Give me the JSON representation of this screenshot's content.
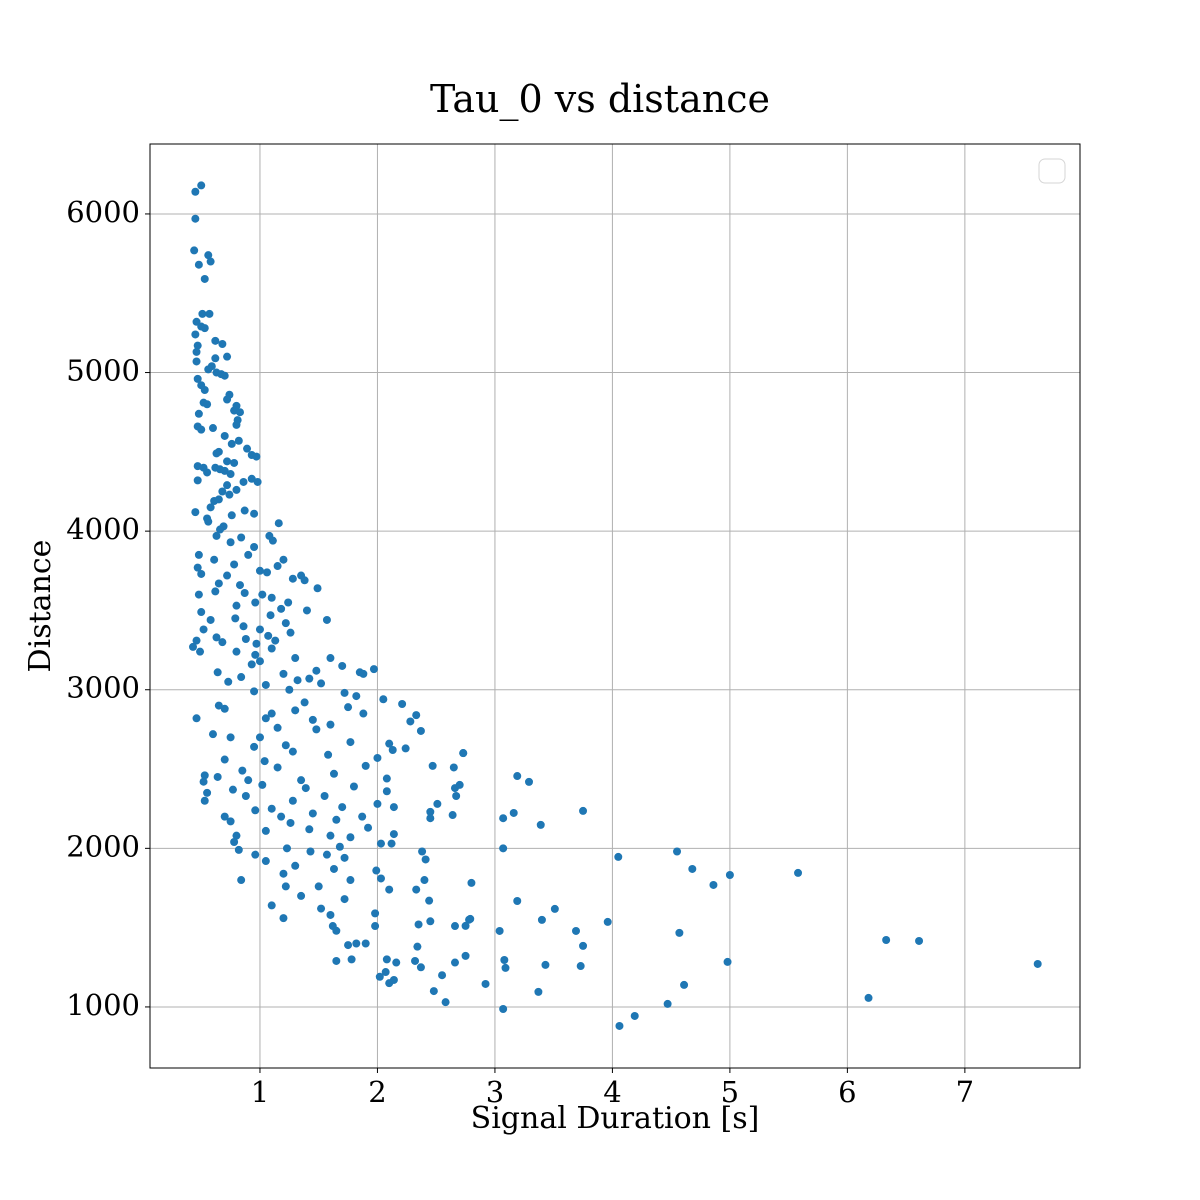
{
  "chart_data": {
    "type": "scatter",
    "title": "Tau_0 vs distance",
    "x_label": "Signal Duration [s]",
    "y_label": "Distance",
    "color": "#1f77b4",
    "grid": true,
    "legend": "upper right",
    "xlim": [
      0.064,
      7.98
    ],
    "ylim": [
      615,
      6441
    ],
    "xticks": [
      1,
      2,
      3,
      4,
      5,
      6,
      7
    ],
    "yticks": [
      1000,
      2000,
      3000,
      4000,
      5000,
      6000
    ],
    "x": [
      0.45,
      0.5,
      0.45,
      0.44,
      0.56,
      0.58,
      0.48,
      0.53,
      0.51,
      0.57,
      0.46,
      0.5,
      0.53,
      0.45,
      0.62,
      0.47,
      0.46,
      0.68,
      0.62,
      0.72,
      0.46,
      0.59,
      0.56,
      0.63,
      0.67,
      0.7,
      0.47,
      0.5,
      0.53,
      0.74,
      0.72,
      0.52,
      0.55,
      0.8,
      0.78,
      0.83,
      0.48,
      0.81,
      0.8,
      0.6,
      0.47,
      0.5,
      0.7,
      0.82,
      0.76,
      0.89,
      0.93,
      0.97,
      0.65,
      0.63,
      0.72,
      0.78,
      0.47,
      0.52,
      0.62,
      0.66,
      0.7,
      0.75,
      0.55,
      0.47,
      0.93,
      0.98,
      0.86,
      0.72,
      0.8,
      0.68,
      0.74,
      0.65,
      0.61,
      0.58,
      0.45,
      0.87,
      0.95,
      0.76,
      0.55,
      0.56,
      0.69,
      1.16,
      0.66,
      0.63,
      0.84,
      1.08,
      1.11,
      0.75,
      0.95,
      0.48,
      0.9,
      1.2,
      0.61,
      0.78,
      1.15,
      0.47,
      1.0,
      0.5,
      1.06,
      0.72,
      1.35,
      1.28,
      1.38,
      0.65,
      0.83,
      1.49,
      0.62,
      0.87,
      1.02,
      0.48,
      1.1,
      0.96,
      1.24,
      0.8,
      1.18,
      1.4,
      0.5,
      1.09,
      0.58,
      0.79,
      1.57,
      1.22,
      0.86,
      1.0,
      0.52,
      1.26,
      1.07,
      0.63,
      0.88,
      1.13,
      0.97,
      0.46,
      0.68,
      0.43,
      1.1,
      0.8,
      0.49,
      0.96,
      1.3,
      1.6,
      1.0,
      1.7,
      0.93,
      1.97,
      1.48,
      0.64,
      1.85,
      1.2,
      1.88,
      0.84,
      1.42,
      0.73,
      1.32,
      1.52,
      1.05,
      1.25,
      0.95,
      1.72,
      1.82,
      1.38,
      2.05,
      2.21,
      0.65,
      1.75,
      1.3,
      0.7,
      1.1,
      2.33,
      1.88,
      0.46,
      1.05,
      1.45,
      1.6,
      2.28,
      1.15,
      2.37,
      1.48,
      0.6,
      0.75,
      1.0,
      1.77,
      2.1,
      1.22,
      0.95,
      2.24,
      2.13,
      1.28,
      0.7,
      1.04,
      1.58,
      2.0,
      2.73,
      1.9,
      2.47,
      1.15,
      2.65,
      0.85,
      0.53,
      1.63,
      0.64,
      2.08,
      1.35,
      0.52,
      0.9,
      1.02,
      1.8,
      2.66,
      1.39,
      0.77,
      2.08,
      0.55,
      1.55,
      2.67,
      0.88,
      0.53,
      1.28,
      2.0,
      2.51,
      1.7,
      2.14,
      1.1,
      0.96,
      2.45,
      1.45,
      0.7,
      1.18,
      1.87,
      2.64,
      2.45,
      1.65,
      0.75,
      1.26,
      1.92,
      1.42,
      1.05,
      0.8,
      1.6,
      2.14,
      1.77,
      0.78,
      2.03,
      2.12,
      1.23,
      1.68,
      0.82,
      1.43,
      0.96,
      1.57,
      2.38,
      1.72,
      1.05,
      2.41,
      1.3,
      1.99,
      1.63,
      2.03,
      1.2,
      0.84,
      1.77,
      2.4,
      2.33,
      2.1,
      1.22,
      1.5,
      1.35,
      1.72,
      1.1,
      2.44,
      1.52,
      1.6,
      1.98,
      1.2,
      2.35,
      2.45,
      1.62,
      1.98,
      2.66,
      1.65,
      2.78,
      1.75,
      1.9,
      1.82,
      2.34,
      1.65,
      1.78,
      2.08,
      2.32,
      2.16,
      2.37,
      2.07,
      2.02,
      2.1,
      2.14,
      2.55,
      2.48,
      2.58,
      2.66,
      7.62,
      6.61,
      6.33,
      6.18,
      5.58,
      5.0,
      4.98,
      4.86,
      4.68,
      4.55,
      4.57,
      4.61,
      4.47,
      4.19,
      4.06,
      4.05,
      3.96,
      3.75,
      3.75,
      3.73,
      3.69,
      3.51,
      3.43,
      3.4,
      3.39,
      3.37,
      3.29,
      3.19,
      3.16,
      3.19,
      3.07,
      3.07,
      3.08,
      3.09,
      3.07,
      3.04,
      2.92,
      2.8,
      2.79,
      2.75,
      2.75,
      2.73,
      2.7
    ],
    "values": [
      6140,
      6180,
      5970,
      5770,
      5740,
      5700,
      5680,
      5590,
      5370,
      5370,
      5320,
      5290,
      5280,
      5240,
      5200,
      5170,
      5130,
      5180,
      5090,
      5100,
      5070,
      5040,
      5020,
      5000,
      4990,
      4980,
      4960,
      4920,
      4890,
      4860,
      4830,
      4810,
      4800,
      4790,
      4760,
      4750,
      4740,
      4700,
      4670,
      4650,
      4660,
      4640,
      4600,
      4570,
      4550,
      4520,
      4480,
      4470,
      4500,
      4490,
      4440,
      4430,
      4410,
      4400,
      4400,
      4390,
      4380,
      4360,
      4370,
      4320,
      4330,
      4310,
      4310,
      4290,
      4260,
      4250,
      4230,
      4200,
      4190,
      4150,
      4120,
      4130,
      4110,
      4100,
      4080,
      4060,
      4030,
      4050,
      4010,
      3970,
      3960,
      3970,
      3940,
      3930,
      3900,
      3850,
      3850,
      3820,
      3820,
      3790,
      3780,
      3770,
      3750,
      3730,
      3740,
      3720,
      3720,
      3700,
      3690,
      3670,
      3660,
      3640,
      3620,
      3610,
      3600,
      3600,
      3580,
      3550,
      3550,
      3530,
      3510,
      3500,
      3490,
      3470,
      3440,
      3450,
      3440,
      3420,
      3400,
      3380,
      3380,
      3360,
      3340,
      3330,
      3320,
      3310,
      3290,
      3310,
      3300,
      3270,
      3260,
      3240,
      3240,
      3220,
      3200,
      3200,
      3180,
      3150,
      3160,
      3130,
      3120,
      3110,
      3110,
      3100,
      3100,
      3080,
      3070,
      3050,
      3060,
      3040,
      3030,
      3000,
      2990,
      2980,
      2960,
      2920,
      2940,
      2910,
      2900,
      2890,
      2870,
      2880,
      2850,
      2840,
      2850,
      2820,
      2820,
      2810,
      2780,
      2800,
      2760,
      2740,
      2750,
      2720,
      2700,
      2700,
      2670,
      2660,
      2650,
      2640,
      2630,
      2620,
      2610,
      2560,
      2550,
      2590,
      2570,
      2600,
      2520,
      2520,
      2510,
      2510,
      2490,
      2460,
      2470,
      2450,
      2440,
      2430,
      2420,
      2430,
      2400,
      2390,
      2380,
      2380,
      2370,
      2360,
      2350,
      2330,
      2330,
      2330,
      2300,
      2300,
      2280,
      2280,
      2260,
      2260,
      2250,
      2240,
      2230,
      2220,
      2200,
      2200,
      2200,
      2210,
      2190,
      2180,
      2170,
      2160,
      2130,
      2120,
      2110,
      2080,
      2080,
      2090,
      2070,
      2040,
      2030,
      2030,
      2000,
      2010,
      1990,
      1980,
      1960,
      1960,
      1980,
      1940,
      1920,
      1930,
      1890,
      1860,
      1870,
      1810,
      1840,
      1800,
      1800,
      1800,
      1740,
      1740,
      1760,
      1760,
      1700,
      1680,
      1640,
      1670,
      1620,
      1580,
      1590,
      1560,
      1520,
      1540,
      1510,
      1510,
      1510,
      1480,
      1550,
      1390,
      1400,
      1400,
      1380,
      1290,
      1300,
      1300,
      1290,
      1280,
      1250,
      1220,
      1190,
      1150,
      1170,
      1200,
      1100,
      1030,
      1280,
      1271,
      1416,
      1422,
      1057,
      1845,
      1832,
      1284,
      1769,
      1870,
      1980,
      1467,
      1139,
      1019,
      943,
      880,
      1946,
      1536,
      2236,
      1385,
      1258,
      1479,
      1618,
      1265,
      1549,
      2148,
      1095,
      2419,
      2456,
      2223,
      1668,
      2190,
      2000,
      1296,
      1246,
      987,
      1479,
      1145,
      1782,
      1555,
      1511,
      1322,
      2601,
      2400
    ]
  }
}
